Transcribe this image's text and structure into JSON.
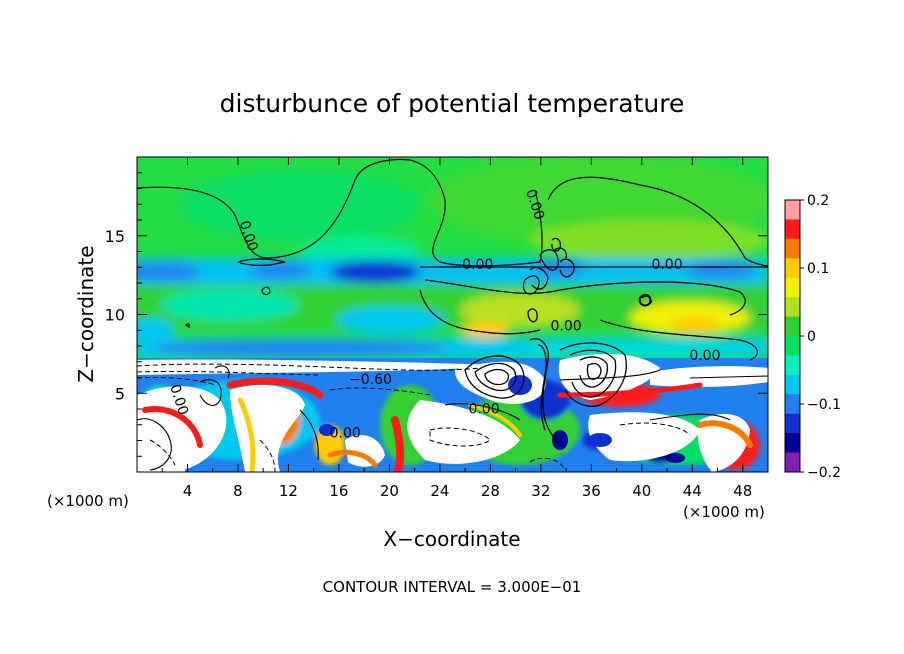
{
  "chart_data": {
    "type": "heatmap",
    "title": "disturbunce of potential temperature",
    "xlabel": "X−coordinate",
    "ylabel": "Z−coordinate",
    "x_unit_left": "(×1000 m)",
    "x_unit_right": "(×1000 m)",
    "footer": "CONTOUR INTERVAL = 3.000E−01",
    "xlim": [
      0,
      50
    ],
    "ylim": [
      0,
      20
    ],
    "x_ticks": [
      4,
      8,
      12,
      16,
      20,
      24,
      28,
      32,
      36,
      40,
      44,
      48
    ],
    "x_tick_labels": [
      "4",
      "8",
      "12",
      "16",
      "20",
      "24",
      "28",
      "32",
      "36",
      "40",
      "44",
      "48"
    ],
    "y_ticks": [
      5,
      10,
      15
    ],
    "y_tick_labels": [
      "5",
      "10",
      "15"
    ],
    "colorbar": {
      "range": [
        -0.2,
        0.2
      ],
      "ticks": [
        0.2,
        0.1,
        0,
        -0.1,
        -0.2
      ],
      "tick_labels": [
        "0.2",
        "0.1",
        "0",
        "−0.1",
        "−0.2"
      ],
      "colors": [
        "#ffa0a0",
        "#ff1a1a",
        "#ff7a00",
        "#ffcc00",
        "#f0f000",
        "#b0e020",
        "#30d030",
        "#00e060",
        "#00f0c0",
        "#00c8f0",
        "#2080f0",
        "#1030d0",
        "#000098",
        "#8020b0"
      ]
    },
    "contour_interval": 0.3,
    "contour_labels": [
      {
        "text": "0.00",
        "x": 8.5,
        "z": 14.9,
        "rotation": "vertical"
      },
      {
        "text": "0.00",
        "x": 31.2,
        "z": 16.9,
        "rotation": "vertical"
      },
      {
        "text": "0.00",
        "x": 27.0,
        "z": 12.9
      },
      {
        "text": "0.00",
        "x": 42.0,
        "z": 12.9
      },
      {
        "text": "0.00",
        "x": 34.0,
        "z": 9.0
      },
      {
        "text": "0.00",
        "x": 45.0,
        "z": 7.1
      },
      {
        "text": "−0.60",
        "x": 18.5,
        "z": 5.6
      },
      {
        "text": "0.00",
        "x": 27.5,
        "z": 3.7
      },
      {
        "text": "0.00",
        "x": 16.5,
        "z": 2.2
      },
      {
        "text": "0.00",
        "x": 3.0,
        "z": 4.5,
        "rotation": "vertical"
      }
    ]
  }
}
